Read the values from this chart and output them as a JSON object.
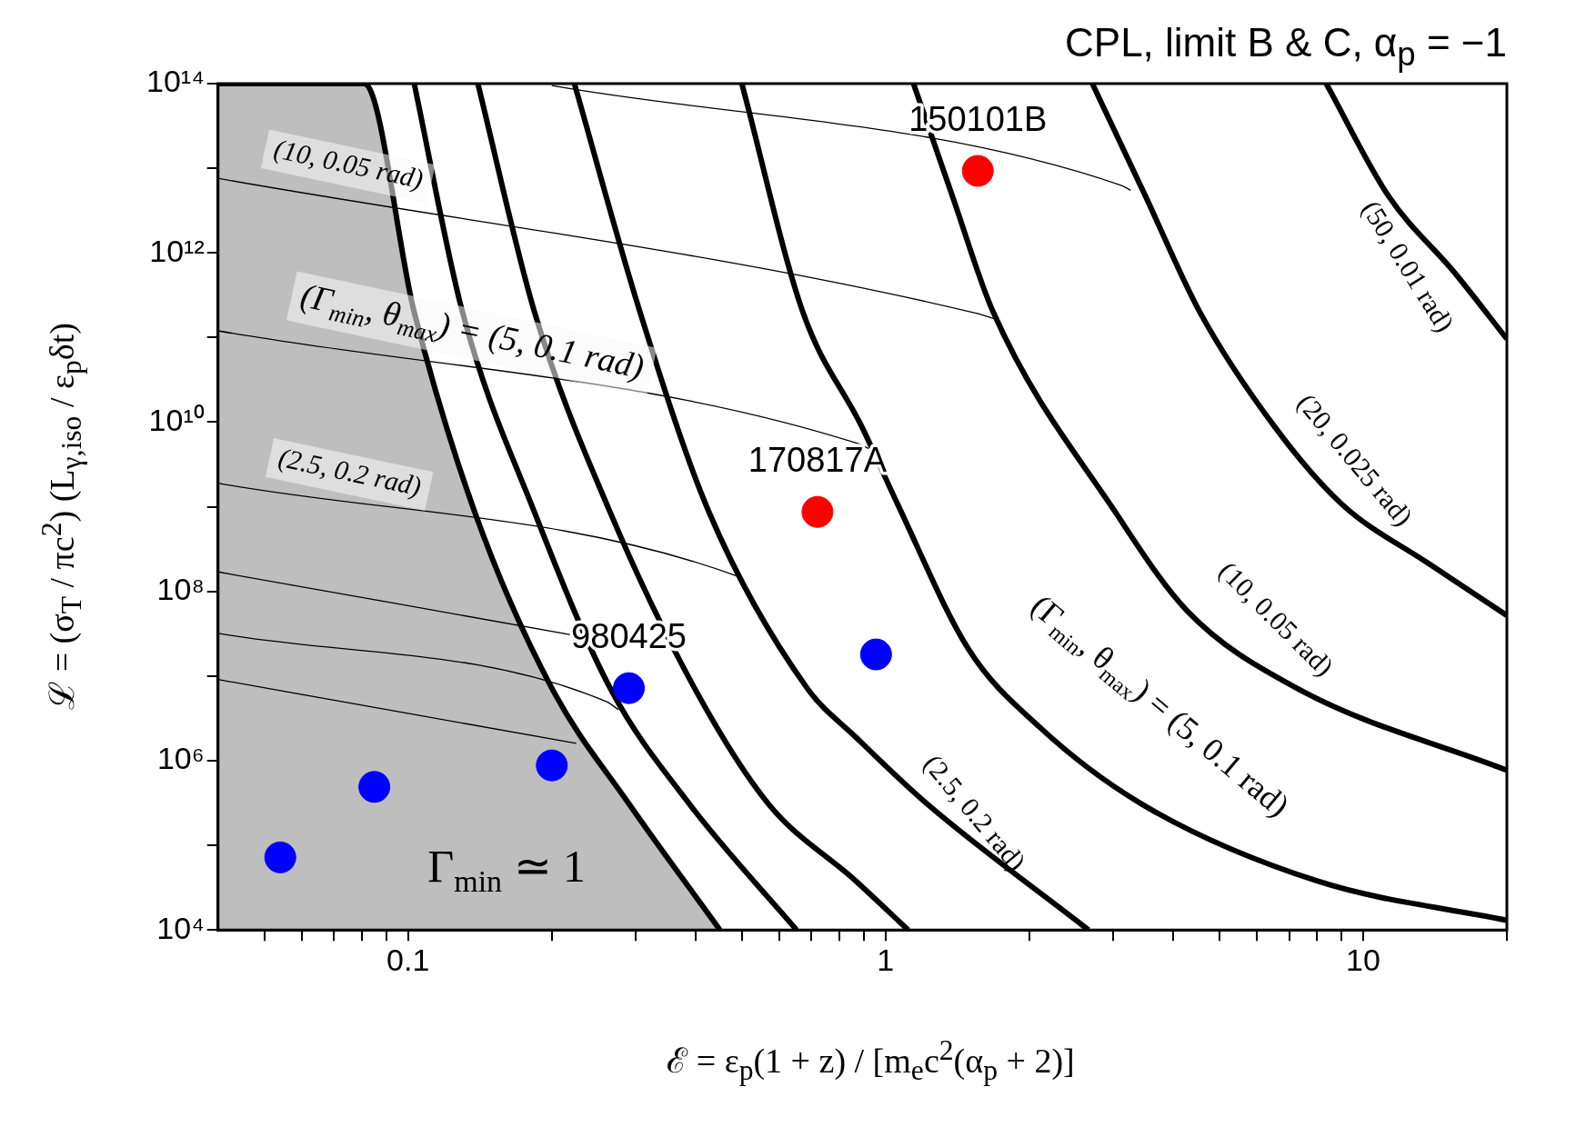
{
  "chart_data": {
    "type": "line",
    "title": "CPL, limit B & C, α$_{p}$ = −1",
    "xlabel": "ℰ = ε$_{p}$(1 + z) / [m$_{e}$c$^{2}$(α$_{p}$ + 2)]",
    "ylabel": "ℒ = (σ$_{T}$ / πc$^{2}$) (L$_{γ,iso}$ / ε$_{p}$δt)",
    "log": "xy",
    "xlim": [
      0.04,
      20
    ],
    "ylim": [
      10000,
      100000000000000.0
    ],
    "xticks": [
      {
        "value": 0.05,
        "label": null
      },
      {
        "value": 0.06,
        "label": null
      },
      {
        "value": 0.07,
        "label": null
      },
      {
        "value": 0.08,
        "label": null
      },
      {
        "value": 0.09,
        "label": null
      },
      0.1,
      {
        "value": 0.2,
        "label": null
      },
      {
        "value": 0.3,
        "label": null
      },
      {
        "value": 0.4,
        "label": null
      },
      {
        "value": 0.5,
        "label": null
      },
      {
        "value": 0.6,
        "label": null
      },
      {
        "value": 0.7,
        "label": null
      },
      {
        "value": 0.8,
        "label": null
      },
      {
        "value": 0.9,
        "label": null
      },
      1,
      {
        "value": 2,
        "label": null
      },
      {
        "value": 3,
        "label": null
      },
      {
        "value": 4,
        "label": null
      },
      {
        "value": 5,
        "label": null
      },
      {
        "value": 6,
        "label": null
      },
      {
        "value": 7,
        "label": null
      },
      {
        "value": 8,
        "label": null
      },
      {
        "value": 9,
        "label": null
      },
      10,
      {
        "value": 20,
        "label": null
      }
    ],
    "yticks": [
      {
        "value": 10000,
        "label": "10⁴"
      },
      {
        "value": 100000,
        "label": null
      },
      {
        "value": 1000000,
        "label": "10⁶"
      },
      {
        "value": 10000000,
        "label": null
      },
      {
        "value": 100000000,
        "label": "10⁸"
      },
      {
        "value": 1000000000,
        "label": null
      },
      {
        "value": 10000000000,
        "label": "10¹⁰"
      },
      {
        "value": 100000000000,
        "label": null
      },
      {
        "value": 1000000000000,
        "label": "10¹²"
      },
      {
        "value": 10000000000000,
        "label": null
      },
      {
        "value": 100000000000000,
        "label": "10¹⁴"
      }
    ],
    "series": [
      {
        "type": "area",
        "color": "#bebebe",
        "x": [
          0.04,
          0.081,
          0.103,
          0.138,
          0.2,
          0.29,
          0.45
        ],
        "values": [
          100000000000000.0,
          100000000000000.0,
          200000000000.0,
          860000000.0,
          7200000.0,
          310000.0,
          10000.0
        ]
      },
      {
        "color": "#000000",
        "x": [
          0.103,
          0.13,
          0.184,
          0.265,
          0.388,
          0.651
        ],
        "values": [
          100000000000000.0,
          200000000000.0,
          860000000.0,
          7200000.0,
          310000.0,
          10000.0
        ]
      },
      {
        "color": "#000000",
        "x": [
          0.14,
          0.184,
          0.265,
          0.398,
          0.568,
          0.866,
          1.115
        ],
        "values": [
          100000000000000.0,
          200000000000.0,
          860000000.0,
          7200000.0,
          310000.0,
          38000.0,
          10000.0
        ]
      },
      {
        "color": "#000000",
        "x": [
          0.223,
          0.306,
          0.427,
          0.685,
          0.866,
          1.22,
          2.66
        ],
        "values": [
          100000000000000.0,
          200000000000.0,
          860000000.0,
          7200000.0,
          1900000.0,
          310000.0,
          10000.0
        ]
      },
      {
        "color": "#000000",
        "x": [
          0.5,
          0.671,
          0.892,
          1.06,
          1.49,
          2.1,
          3.43,
          8.0,
          20
        ],
        "values": [
          100000000000000.0,
          200000000000.0,
          8800000000.0,
          1070000000.0,
          21000000.0,
          2500000.0,
          310000.0,
          38000.0,
          13000.0
        ]
      },
      {
        "color": "#000000",
        "x": [
          1.144,
          1.38,
          1.68,
          3.03,
          4.28,
          7.26,
          20
        ],
        "values": [
          100000000000000.0,
          4700000000000.0,
          200000000000.0,
          860000000.0,
          59000000.0,
          7200000.0,
          770000.0
        ]
      },
      {
        "color": "#000000",
        "x": [
          2.71,
          3.5,
          4.55,
          6.53,
          9.03,
          13.6,
          20
        ],
        "values": [
          100000000000000.0,
          4700000000000.0,
          200000000000.0,
          8800000000.0,
          1070000000.0,
          220000000.0,
          52000000.0
        ]
      },
      {
        "color": "#000000",
        "x": [
          8.37,
          11.3,
          15.6,
          20
        ],
        "values": [
          100000000000000.0,
          4700000000000.0,
          570000000000.0,
          96000000000.0
        ]
      },
      {
        "color": "#000000",
        "x": [
          0.2,
          3.11,
          3.26
        ],
        "values": [
          95000000000000.0,
          6300000000000.0,
          5500000000000.0
        ]
      },
      {
        "color": "#000000",
        "x": [
          0.04,
          1.54,
          1.73
        ],
        "values": [
          7600000000000.0,
          195000000000.0,
          160000000000.0
        ]
      },
      {
        "color": "#000000",
        "x": [
          0.04,
          0.874,
          0.92
        ],
        "values": [
          120000000000.0,
          5600000000.0,
          4900000000.0
        ]
      },
      {
        "color": "#000000",
        "x": [
          0.04,
          0.492,
          0.503
        ],
        "values": [
          1900000000.0,
          150000000.0,
          140000000.0
        ]
      },
      {
        "color": "#000000",
        "x": [
          0.04,
          0.233
        ],
        "values": [
          170000000.0,
          29000000.0
        ]
      },
      {
        "color": "#000000",
        "x": [
          0.04,
          0.26,
          0.276
        ],
        "values": [
          32000000.0,
          5000000.0,
          4000000.0
        ]
      },
      {
        "color": "#000000",
        "x": [
          0.04,
          0.225
        ],
        "values": [
          9100000.0,
          1600000.0
        ]
      },
      {
        "type": "scatter",
        "marker": "circle",
        "color": "#0000ff",
        "x": [
          0.054,
          0.085,
          0.2,
          0.29,
          0.955
        ],
        "values": [
          72000.0,
          490000.0,
          880000.0,
          7200000.0,
          18000000.0
        ]
      },
      {
        "type": "scatter",
        "marker": "circle",
        "color": "#ff0000",
        "x": [
          0.72,
          1.56
        ],
        "values": [
          870000000.0,
          9300000000000.0
        ]
      }
    ],
    "annotations": [
      "(10, 0.05 rad)",
      "(Γ$_{min}$, θ$_{max}$) = (5, 0.1 rad)",
      "(2.5, 0.2 rad)",
      "(50, 0.01 rad)",
      "(20, 0.025 rad)",
      "(10, 0.05 rad)",
      "(Γ$_{min}$, θ$_{max}$) = (5, 0.1 rad)",
      "(2.5, 0.2 rad)",
      "Γ$_{min}$ ≃ 1",
      {
        "text": "150101B",
        "x": 1.56,
        "y": 9300000000000.0
      },
      {
        "text": "170817A",
        "x": 0.72,
        "y": 870000000.0
      },
      {
        "text": "980425",
        "x": 0.29,
        "y": 7200000.0
      }
    ]
  }
}
